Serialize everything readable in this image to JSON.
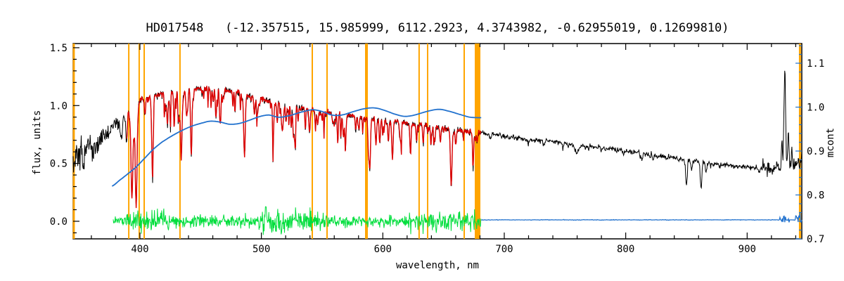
{
  "chart_data": {
    "type": "line",
    "title": "HD017548   (-12.357515, 15.985999, 6112.2923, 4.3743982, -0.62955019, 0.12699810)",
    "xlabel": "wavelength, nm",
    "ylabel_left": "flux, units",
    "ylabel_right": "mcont",
    "x_range": [
      345,
      945
    ],
    "y_left_range": [
      -0.152,
      1.536
    ],
    "y_right_range": [
      0.7,
      1.1448
    ],
    "x_ticks": [
      400,
      500,
      600,
      700,
      800,
      900
    ],
    "x_tick_labels": [
      "400",
      "500",
      "600",
      "700",
      "800",
      "900"
    ],
    "x_minor_step": 20,
    "y_left_ticks": [
      0.0,
      0.5,
      1.0,
      1.5
    ],
    "y_left_tick_labels": [
      "0.0",
      "0.5",
      "1.0",
      "1.5"
    ],
    "y_left_minor_step": 0.1,
    "y_right_ticks": [
      0.7,
      0.8,
      0.9,
      1.0,
      1.1
    ],
    "y_right_tick_labels": [
      "0.7",
      "0.8",
      "0.9",
      "1.0",
      "1.1"
    ],
    "y_right_minor_step": 0.02,
    "grid": false,
    "legend": "none",
    "colors": {
      "observed": "#000000",
      "fit": "#dd0000",
      "continuum": "#2272ce",
      "residual": "#00de3c",
      "marker": "#ffa500",
      "axis": "#000000",
      "right_axis": "#2272ce"
    },
    "marker_lines_nm": [
      {
        "wl": 345.5,
        "width": 3
      },
      {
        "wl": 390.8,
        "width": 2
      },
      {
        "wl": 399.4,
        "width": 2
      },
      {
        "wl": 403.5,
        "width": 2
      },
      {
        "wl": 433.0,
        "width": 2
      },
      {
        "wl": 541.9,
        "width": 2
      },
      {
        "wl": 554.1,
        "width": 2
      },
      {
        "wl": 586.5,
        "width": 4
      },
      {
        "wl": 629.9,
        "width": 2
      },
      {
        "wl": 636.9,
        "width": 2
      },
      {
        "wl": 667.0,
        "width": 2
      },
      {
        "wl": 678.0,
        "width": 8
      },
      {
        "wl": 943.5,
        "width": 3
      }
    ],
    "series": {
      "observed": {
        "name": "observed spectrum",
        "axis": "left",
        "range": [
          345,
          945
        ],
        "step": 0.35,
        "noise_seed": 101,
        "continuum_flux": [
          [
            345,
            0.55
          ],
          [
            355,
            0.6
          ],
          [
            365,
            0.68
          ],
          [
            375,
            0.78
          ],
          [
            385,
            0.92
          ],
          [
            395,
            1.02
          ],
          [
            405,
            1.07
          ],
          [
            415,
            1.1
          ],
          [
            425,
            1.12
          ],
          [
            435,
            1.13
          ],
          [
            445,
            1.145
          ],
          [
            455,
            1.15
          ],
          [
            465,
            1.145
          ],
          [
            475,
            1.12
          ],
          [
            485,
            1.1
          ],
          [
            495,
            1.07
          ],
          [
            505,
            1.04
          ],
          [
            515,
            1.02
          ],
          [
            525,
            1.0
          ],
          [
            535,
            0.98
          ],
          [
            545,
            0.955
          ],
          [
            555,
            0.94
          ],
          [
            565,
            0.925
          ],
          [
            575,
            0.91
          ],
          [
            585,
            0.9
          ],
          [
            595,
            0.885
          ],
          [
            605,
            0.87
          ],
          [
            615,
            0.855
          ],
          [
            625,
            0.84
          ],
          [
            635,
            0.83
          ],
          [
            645,
            0.815
          ],
          [
            655,
            0.8
          ],
          [
            665,
            0.785
          ],
          [
            675,
            0.775
          ],
          [
            685,
            0.76
          ],
          [
            700,
            0.74
          ],
          [
            720,
            0.71
          ],
          [
            740,
            0.685
          ],
          [
            760,
            0.66
          ],
          [
            780,
            0.635
          ],
          [
            800,
            0.61
          ],
          [
            820,
            0.58
          ],
          [
            840,
            0.55
          ],
          [
            860,
            0.52
          ],
          [
            880,
            0.49
          ],
          [
            900,
            0.47
          ],
          [
            915,
            0.455
          ],
          [
            925,
            0.45
          ],
          [
            935,
            0.47
          ],
          [
            945,
            0.52
          ]
        ],
        "noise_sigma": [
          {
            "from": 345,
            "to": 365,
            "sigma": 0.065
          },
          {
            "from": 365,
            "to": 375,
            "sigma": 0.045
          },
          {
            "from": 375,
            "to": 385,
            "sigma": 0.025
          },
          {
            "from": 385,
            "to": 680,
            "sigma": 0.013
          },
          {
            "from": 680,
            "to": 912,
            "sigma": 0.011
          },
          {
            "from": 912,
            "to": 945,
            "sigma": 0.032
          }
        ],
        "absorption_lines": [
          {
            "c": 385.0,
            "d": 0.25,
            "w": 0.8
          },
          {
            "c": 388.9,
            "d": 0.3,
            "w": 0.8
          },
          {
            "c": 393.4,
            "d": 0.8,
            "w": 1.1
          },
          {
            "c": 396.9,
            "d": 0.78,
            "w": 1.1
          },
          {
            "c": 410.2,
            "d": 0.52,
            "w": 0.9
          },
          {
            "c": 422.7,
            "d": 0.25,
            "w": 0.7
          },
          {
            "c": 434.0,
            "d": 0.52,
            "w": 0.9
          },
          {
            "c": 438.4,
            "d": 0.2,
            "w": 0.7
          },
          {
            "c": 486.1,
            "d": 0.48,
            "w": 0.9
          },
          {
            "c": 517.3,
            "d": 0.22,
            "w": 1.2
          },
          {
            "c": 527.0,
            "d": 0.16,
            "w": 0.8
          },
          {
            "c": 589.2,
            "d": 0.42,
            "w": 0.9
          },
          {
            "c": 615.2,
            "d": 0.1,
            "w": 0.6
          },
          {
            "c": 656.3,
            "d": 0.62,
            "w": 0.9
          },
          {
            "c": 700.5,
            "d": 0.05,
            "w": 0.6
          },
          {
            "c": 720.0,
            "d": 0.05,
            "w": 0.6
          },
          {
            "c": 760.0,
            "d": 0.1,
            "w": 2.2
          },
          {
            "c": 780.0,
            "d": 0.05,
            "w": 0.6
          },
          {
            "c": 820.0,
            "d": 0.06,
            "w": 0.7
          },
          {
            "c": 850.0,
            "d": 0.42,
            "w": 0.9
          },
          {
            "c": 854.2,
            "d": 0.16,
            "w": 0.8
          },
          {
            "c": 862.0,
            "d": 0.45,
            "w": 0.9
          },
          {
            "c": 866.2,
            "d": 0.14,
            "w": 0.8
          }
        ],
        "emission_spikes": [
          {
            "c": 931.0,
            "a": 0.88,
            "w": 0.9
          },
          {
            "c": 928.6,
            "a": 0.22,
            "w": 0.6
          },
          {
            "c": 933.9,
            "a": 0.3,
            "w": 0.7
          },
          {
            "c": 936.8,
            "a": 0.14,
            "w": 0.5
          },
          {
            "c": 924.5,
            "a": 0.1,
            "w": 0.5
          }
        ],
        "line_forest_blue_region": {
          "seed": 42,
          "count": 175,
          "from": 381,
          "to": 679,
          "depth_min": 0.02,
          "depth_max": 0.26,
          "depth_power": 2,
          "width_min": 0.25,
          "width_max": 0.75
        },
        "line_forest_red_region": {
          "seed": 7,
          "count": 45,
          "from": 683,
          "to": 918,
          "depth_min": 0.01,
          "depth_max": 0.05,
          "depth_power": 1,
          "width_min": 0.3,
          "width_max": 0.8
        }
      },
      "fit": {
        "name": "fitted spectrum",
        "axis": "left",
        "range": [
          389.2,
          681
        ],
        "step": 0.35,
        "noise_seed": 202,
        "noise_sigma": [
          {
            "from": 345,
            "to": 945,
            "sigma": 0.01
          }
        ]
      },
      "continuum_fit": {
        "name": "continuum (mcont)",
        "axis": "right",
        "points_mcont": [
          [
            377,
            0.82
          ],
          [
            383,
            0.833
          ],
          [
            390,
            0.848
          ],
          [
            397,
            0.864
          ],
          [
            404,
            0.884
          ],
          [
            411,
            0.904
          ],
          [
            418,
            0.92
          ],
          [
            426,
            0.934
          ],
          [
            434,
            0.946
          ],
          [
            442,
            0.956
          ],
          [
            450,
            0.963
          ],
          [
            458,
            0.968
          ],
          [
            466,
            0.966
          ],
          [
            474,
            0.961
          ],
          [
            482,
            0.963
          ],
          [
            490,
            0.97
          ],
          [
            498,
            0.978
          ],
          [
            506,
            0.982
          ],
          [
            514,
            0.977
          ],
          [
            522,
            0.98
          ],
          [
            532,
            0.988
          ],
          [
            542,
            0.994
          ],
          [
            550,
            0.99
          ],
          [
            558,
            0.982
          ],
          [
            566,
            0.982
          ],
          [
            576,
            0.99
          ],
          [
            586,
            0.997
          ],
          [
            594,
            0.998
          ],
          [
            602,
            0.992
          ],
          [
            610,
            0.984
          ],
          [
            618,
            0.979
          ],
          [
            626,
            0.982
          ],
          [
            636,
            0.99
          ],
          [
            646,
            0.995
          ],
          [
            654,
            0.991
          ],
          [
            664,
            0.983
          ],
          [
            672,
            0.977
          ],
          [
            681,
            0.976
          ]
        ]
      },
      "continuum_extension": {
        "name": "continuum flat extension",
        "axis": "left",
        "range": [
          681,
          945
        ],
        "step": 0.5,
        "level": 0.012,
        "seed": 9,
        "base_sigma": 0.0012,
        "bursts": [
          {
            "from": 927,
            "to": 935,
            "sigma": 0.018
          },
          {
            "from": 940,
            "to": 945,
            "sigma": 0.03
          }
        ]
      },
      "residual": {
        "name": "fit residual",
        "axis": "left",
        "range": [
          378,
          681
        ],
        "step": 0.35,
        "seed": 55,
        "base_sigma": 0.018,
        "bursts": [
          {
            "from": 388,
            "to": 425,
            "sigma": 0.045
          },
          {
            "from": 425,
            "to": 498,
            "sigma": 0.026
          },
          {
            "from": 498,
            "to": 542,
            "sigma": 0.055
          },
          {
            "from": 542,
            "to": 570,
            "sigma": 0.034
          },
          {
            "from": 570,
            "to": 618,
            "sigma": 0.024
          },
          {
            "from": 618,
            "to": 681,
            "sigma": 0.04
          }
        ]
      }
    }
  }
}
